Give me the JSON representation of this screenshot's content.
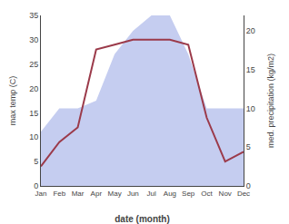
{
  "chart_data": {
    "type": "line",
    "xlabel": "date (month)",
    "ylabel": "max temp (C)",
    "y2label": "med. precipitation (kg/m2)",
    "categories": [
      "Jan",
      "Feb",
      "Mar",
      "Apr",
      "May",
      "Jun",
      "Jul",
      "Aug",
      "Sep",
      "Oct",
      "Nov",
      "Dec"
    ],
    "series": [
      {
        "type": "area",
        "axis": "y2",
        "color": "#c5cdf0",
        "values": [
          7,
          10,
          10,
          11,
          17,
          20,
          22,
          22,
          17,
          10,
          10,
          10
        ]
      },
      {
        "type": "line",
        "color": "#9b3a4a",
        "values": [
          4,
          9,
          12,
          28,
          29,
          30,
          30,
          30,
          29,
          14,
          5,
          7
        ]
      }
    ],
    "ylim": [
      0,
      35
    ],
    "yticks": [
      0,
      5,
      10,
      15,
      20,
      25,
      30,
      35
    ],
    "y2lim": [
      0,
      22
    ],
    "y2ticks": [
      0,
      5,
      10,
      15,
      20
    ],
    "grid": false
  }
}
